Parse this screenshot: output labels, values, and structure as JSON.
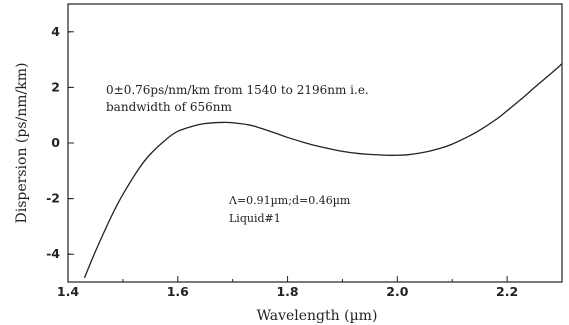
{
  "chart_data": {
    "type": "line",
    "title": "",
    "xlabel": "Wavelength (µm)",
    "ylabel": "Dispersion (ps/nm/km)",
    "xlim": [
      1.4,
      2.3
    ],
    "ylim": [
      -5,
      5
    ],
    "x_ticks": [
      1.4,
      1.6,
      1.8,
      2.0,
      2.2
    ],
    "x_tick_labels": [
      "1.4",
      "1.6",
      "1.8",
      "2.0",
      "2.2"
    ],
    "y_ticks": [
      -4,
      -2,
      0,
      2,
      4
    ],
    "y_tick_labels": [
      "-4",
      "-2",
      "0",
      "2",
      "4"
    ],
    "grid": false,
    "series": [
      {
        "color": "#222222",
        "x": [
          1.43,
          1.45,
          1.48,
          1.5,
          1.53,
          1.55,
          1.58,
          1.6,
          1.63,
          1.65,
          1.68,
          1.7,
          1.73,
          1.75,
          1.78,
          1.8,
          1.83,
          1.85,
          1.88,
          1.9,
          1.93,
          1.95,
          1.98,
          2.0,
          2.02,
          2.05,
          2.08,
          2.1,
          2.13,
          2.15,
          2.18,
          2.2,
          2.23,
          2.25,
          2.28,
          2.3
        ],
        "y": [
          -4.85,
          -3.9,
          -2.6,
          -1.85,
          -0.9,
          -0.4,
          0.15,
          0.42,
          0.62,
          0.7,
          0.74,
          0.73,
          0.65,
          0.54,
          0.34,
          0.2,
          0.02,
          -0.09,
          -0.22,
          -0.3,
          -0.38,
          -0.41,
          -0.44,
          -0.44,
          -0.42,
          -0.33,
          -0.18,
          -0.04,
          0.24,
          0.46,
          0.85,
          1.16,
          1.65,
          2.0,
          2.5,
          2.85
        ]
      }
    ],
    "annotations": [
      {
        "id": "bandwidth",
        "lines": [
          "0±0.76ps/nm/km from 1540 to 2196nm i.e.",
          "bandwidth of 656nm"
        ]
      },
      {
        "id": "params",
        "lines": [
          "Λ=0.91µm;d=0.46µm",
          "Liquid#1"
        ]
      }
    ]
  }
}
